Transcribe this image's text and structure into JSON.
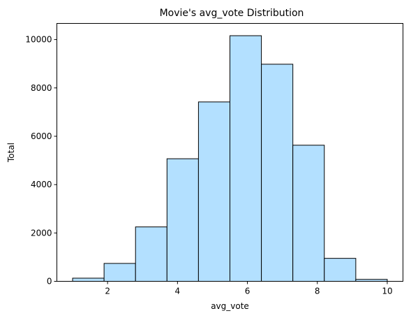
{
  "chart_data": {
    "type": "bar",
    "title": "Movie's avg_vote Distribution",
    "xlabel": "avg_vote",
    "ylabel": "Total",
    "bins": [
      {
        "x0": 1.0,
        "x1": 1.9,
        "value": 130
      },
      {
        "x0": 1.9,
        "x1": 2.8,
        "value": 740
      },
      {
        "x0": 2.8,
        "x1": 3.7,
        "value": 2250
      },
      {
        "x0": 3.7,
        "x1": 4.6,
        "value": 5070
      },
      {
        "x0": 4.6,
        "x1": 5.5,
        "value": 7420
      },
      {
        "x0": 5.5,
        "x1": 6.4,
        "value": 10160
      },
      {
        "x0": 6.4,
        "x1": 7.3,
        "value": 8980
      },
      {
        "x0": 7.3,
        "x1": 8.2,
        "value": 5630
      },
      {
        "x0": 8.2,
        "x1": 9.1,
        "value": 950
      },
      {
        "x0": 9.1,
        "x1": 10.0,
        "value": 80
      }
    ],
    "xlim": [
      0.55,
      10.45
    ],
    "ylim": [
      0,
      10668
    ],
    "xticks": [
      "2",
      "4",
      "6",
      "8",
      "10"
    ],
    "yticks": [
      "0",
      "2000",
      "4000",
      "6000",
      "8000",
      "10000"
    ],
    "bar_color": "#b3e0ff",
    "edge_color": "#000000",
    "grid": false
  }
}
